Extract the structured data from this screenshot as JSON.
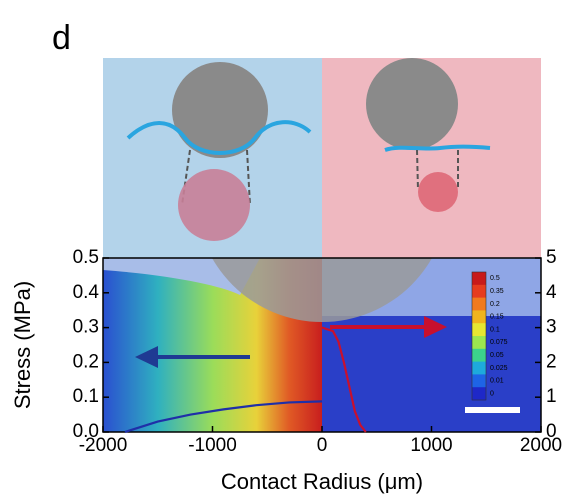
{
  "chart_data": {
    "type": "line",
    "panel_label": "d",
    "x_label": "Contact Radius (μm)",
    "y_label": "Stress (MPa)",
    "xlim": [
      -2000,
      2000
    ],
    "xticks": [
      -2000,
      -1000,
      0,
      1000,
      2000
    ],
    "ylim": [
      0,
      0.5
    ],
    "yticks": [
      {
        "value": 0,
        "label": "0.0"
      },
      0.1,
      0.2,
      0.3,
      0.4,
      0.5
    ],
    "y2lim": [
      0,
      5
    ],
    "y2ticks": [
      0,
      1,
      2,
      3,
      4,
      5
    ],
    "series": [
      {
        "color": "#1f2fa8",
        "x": [
          -1800,
          -1500,
          -1200,
          -900,
          -600,
          -300,
          0
        ],
        "values": [
          0,
          0.03,
          0.05,
          0.065,
          0.077,
          0.085,
          0.088
        ]
      },
      {
        "color": "#c8102e",
        "x": [
          0,
          100,
          150,
          200,
          250,
          300,
          350,
          400
        ],
        "values": [
          0.3,
          0.29,
          0.26,
          0.2,
          0.13,
          0.06,
          0.02,
          0
        ]
      }
    ],
    "colorbar": {
      "labels": [
        0.5,
        0.35,
        0.2,
        0.15,
        0.1,
        0.075,
        0.05,
        0.025,
        0.01,
        0
      ],
      "colors": [
        "#c81a1a",
        "#e63c1e",
        "#f07a1e",
        "#f0b41e",
        "#e6e632",
        "#9be650",
        "#3cd28c",
        "#1eaadc",
        "#1e64e6",
        "#1e28c8"
      ]
    }
  }
}
